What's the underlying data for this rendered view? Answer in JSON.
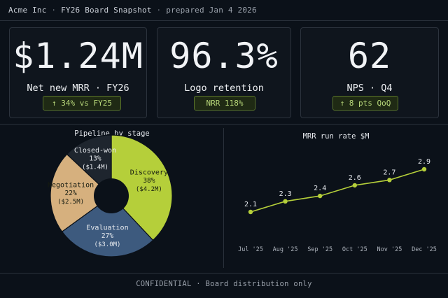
{
  "header": {
    "company": "Acme Inc",
    "report": "FY26 Board Snapshot",
    "prepared": "prepared Jan 4 2026",
    "separator": "·"
  },
  "kpis": [
    {
      "value": "$1.24M",
      "label": "Net new MRR · FY26",
      "badge": "↑ 34% vs FY25"
    },
    {
      "value": "96.3%",
      "label": "Logo retention",
      "badge": "NRR 118%"
    },
    {
      "value": "62",
      "label": "NPS · Q4",
      "badge": "↑ 8 pts QoQ"
    }
  ],
  "colors": {
    "accent": "#b5cf3a",
    "discovery": "#b5cf3a",
    "evaluation": "#3d5a7e",
    "negotiation": "#d6b07e",
    "closed_won": "#1e252e"
  },
  "chart_data": [
    {
      "type": "pie",
      "title": "Pipeline by stage",
      "donut": true,
      "slices": [
        {
          "name": "Discovery",
          "percent": 38,
          "amount": "($4.2M)",
          "color": "#b5cf3a"
        },
        {
          "name": "Evaluation",
          "percent": 27,
          "amount": "($3.0M)",
          "color": "#3d5a7e"
        },
        {
          "name": "Negotiation",
          "percent": 22,
          "amount": "($2.5M)",
          "color": "#d6b07e"
        },
        {
          "name": "Closed-won",
          "percent": 13,
          "amount": "($1.4M)",
          "color": "#1e252e"
        }
      ]
    },
    {
      "type": "line",
      "title": "MRR run rate $M",
      "categories": [
        "Jul '25",
        "Aug '25",
        "Sep '25",
        "Oct '25",
        "Nov '25",
        "Dec '25"
      ],
      "values": [
        2.1,
        2.3,
        2.4,
        2.6,
        2.7,
        2.9
      ],
      "data_labels": [
        "2.1",
        "2.3",
        "2.4",
        "2.6",
        "2.7",
        "2.9"
      ],
      "color": "#b5cf3a",
      "grid": false
    }
  ],
  "footer": "CONFIDENTIAL · Board distribution only"
}
